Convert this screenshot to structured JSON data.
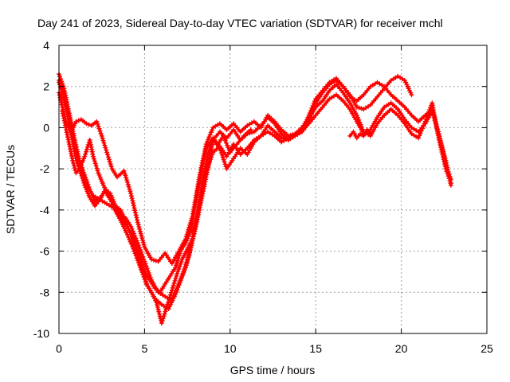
{
  "chart_data": {
    "type": "scatter",
    "title": "Day 241 of 2023, Sidereal Day-to-day VTEC variation (SDTVAR) for receiver mchl",
    "xlabel": "GPS time / hours",
    "ylabel": "SDTVAR / TECUs",
    "xlim": [
      0,
      25
    ],
    "ylim": [
      -10,
      4
    ],
    "xticks": [
      0,
      5,
      10,
      15,
      20,
      25
    ],
    "yticks": [
      -10,
      -8,
      -6,
      -4,
      -2,
      0,
      2,
      4
    ],
    "grid": true,
    "marker": "plus",
    "color": "#ff0000",
    "series": [
      {
        "name": "track-1",
        "x": [
          0.0,
          0.2,
          0.4,
          0.6,
          0.8,
          1.0,
          1.3,
          1.6,
          2.0,
          2.4,
          2.8,
          3.2,
          3.6,
          4.0,
          4.4,
          4.8,
          5.2,
          5.6,
          6.0,
          6.4,
          6.8,
          7.2,
          7.6,
          8.0,
          8.4,
          8.8,
          9.0,
          9.4,
          9.8,
          10.2,
          10.6,
          11.0,
          11.4,
          11.8,
          12.2,
          12.6,
          13.0,
          13.4,
          13.8,
          14.2,
          14.6,
          15.0,
          15.4,
          15.8,
          16.2,
          16.6,
          17.0,
          17.4,
          17.8,
          18.2,
          18.6,
          19.0,
          19.4,
          19.8,
          20.2,
          20.6
        ],
        "y": [
          2.3,
          1.8,
          1.0,
          0.2,
          -0.6,
          -1.5,
          -2.2,
          -2.8,
          -3.3,
          -3.5,
          -3.7,
          -3.9,
          -4.5,
          -5.2,
          -6.0,
          -6.9,
          -7.7,
          -8.3,
          -8.6,
          -8.8,
          -8.1,
          -7.2,
          -6.2,
          -4.8,
          -3.2,
          -1.6,
          -0.6,
          -0.2,
          -0.5,
          -0.1,
          -0.6,
          -0.3,
          -0.2,
          0.1,
          0.5,
          0.2,
          -0.3,
          -0.6,
          -0.4,
          -0.2,
          0.3,
          1.2,
          1.7,
          2.1,
          2.3,
          2.0,
          1.6,
          1.0,
          0.9,
          1.1,
          1.5,
          1.9,
          2.3,
          2.5,
          2.3,
          1.6
        ]
      },
      {
        "name": "track-2",
        "x": [
          0.0,
          0.2,
          0.4,
          0.7,
          1.0,
          1.3,
          1.6,
          1.9,
          2.2,
          2.5,
          2.8,
          3.1,
          3.4,
          3.8,
          4.2,
          4.6,
          5.0,
          5.4,
          5.8,
          6.2,
          6.6,
          7.0,
          7.4,
          7.8,
          8.2,
          8.6,
          9.0,
          9.4,
          9.8,
          10.2,
          10.6,
          11.0,
          11.4,
          11.8,
          12.2,
          12.6,
          13.0,
          13.4,
          13.8,
          14.2,
          14.6,
          15.0,
          15.4,
          15.8,
          16.2,
          16.6,
          17.0,
          17.4,
          17.8,
          18.2,
          18.6,
          19.0,
          19.4,
          19.8,
          20.2,
          20.6,
          21.0,
          21.4,
          21.8,
          22.2,
          22.6,
          22.9
        ],
        "y": [
          1.7,
          1.0,
          0.3,
          -0.2,
          0.3,
          0.4,
          0.2,
          0.1,
          0.3,
          -0.4,
          -1.2,
          -2.0,
          -2.4,
          -2.1,
          -3.2,
          -4.6,
          -5.8,
          -6.4,
          -6.5,
          -6.1,
          -6.6,
          -6.0,
          -5.4,
          -4.3,
          -2.4,
          -0.8,
          0.0,
          0.2,
          -0.1,
          0.2,
          -0.2,
          0.1,
          0.3,
          0.0,
          0.6,
          0.3,
          -0.1,
          -0.4,
          -0.3,
          -0.1,
          0.6,
          1.4,
          1.8,
          2.2,
          2.4,
          2.0,
          1.5,
          1.3,
          1.6,
          2.0,
          2.2,
          2.0,
          1.6,
          1.3,
          1.0,
          0.6,
          0.3,
          0.6,
          0.9,
          -0.4,
          -1.6,
          -2.8
        ]
      },
      {
        "name": "track-3",
        "x": [
          0.0,
          0.3,
          0.6,
          0.9,
          1.2,
          1.5,
          1.8,
          2.1,
          2.4,
          2.7,
          3.0,
          3.3,
          3.6,
          3.9,
          4.2,
          4.6,
          5.0,
          5.4,
          5.8,
          6.2,
          6.6,
          7.0,
          7.4,
          7.8,
          8.2,
          8.6,
          9.0,
          9.4,
          9.8,
          10.2,
          10.6,
          11.0,
          11.4,
          11.8,
          12.2,
          12.6,
          13.0,
          13.4,
          13.8,
          14.2,
          14.6,
          15.0,
          15.4,
          15.8,
          16.2,
          16.6,
          17.0,
          17.4,
          17.8,
          18.2,
          18.6,
          19.0,
          19.4,
          19.8,
          20.2,
          20.6,
          21.0,
          21.4,
          21.8,
          22.2,
          22.6,
          22.9
        ],
        "y": [
          2.6,
          1.9,
          0.7,
          -0.5,
          -1.6,
          -2.3,
          -3.0,
          -3.6,
          -3.4,
          -3.1,
          -3.5,
          -3.9,
          -4.2,
          -4.4,
          -4.8,
          -5.6,
          -6.5,
          -7.4,
          -8.0,
          -8.2,
          -8.4,
          -7.6,
          -6.8,
          -5.5,
          -3.8,
          -2.1,
          -1.2,
          -0.9,
          -1.4,
          -0.8,
          -1.3,
          -1.0,
          -0.6,
          -0.4,
          -0.2,
          -0.4,
          -0.7,
          -0.5,
          -0.3,
          -0.2,
          0.2,
          0.6,
          1.0,
          1.4,
          1.6,
          1.3,
          0.9,
          0.3,
          -0.3,
          -0.1,
          0.5,
          1.0,
          1.2,
          0.9,
          0.4,
          0.0,
          -0.2,
          0.2,
          0.8,
          -0.3,
          -1.8,
          -2.5
        ]
      },
      {
        "name": "track-4",
        "x": [
          0.0,
          0.3,
          0.6,
          0.9,
          1.2,
          1.5,
          1.8,
          2.1,
          2.4,
          2.7,
          3.0,
          3.3,
          3.6,
          3.9,
          4.2,
          4.5,
          4.8,
          5.1,
          5.4,
          5.7,
          6.0,
          6.3,
          6.6,
          6.9,
          7.2,
          7.5,
          7.8,
          8.1,
          8.4,
          8.7,
          9.0,
          9.4,
          9.8,
          10.2,
          10.6,
          11.0,
          11.4,
          11.8,
          12.2,
          12.6,
          13.0,
          13.4,
          13.8,
          14.2,
          14.6,
          15.0,
          15.4,
          15.8,
          16.2,
          16.6,
          17.0,
          17.4,
          17.8,
          18.2,
          18.6,
          19.0,
          19.4,
          19.8,
          20.2,
          20.6,
          21.0,
          21.4,
          21.8,
          22.2,
          22.6,
          22.9
        ],
        "y": [
          2.2,
          1.4,
          0.5,
          -0.9,
          -2.0,
          -2.8,
          -3.4,
          -3.8,
          -3.5,
          -3.0,
          -3.2,
          -3.8,
          -4.0,
          -4.6,
          -5.2,
          -6.0,
          -6.8,
          -7.6,
          -8.0,
          -8.5,
          -9.5,
          -8.7,
          -7.9,
          -7.1,
          -6.4,
          -5.9,
          -5.4,
          -4.2,
          -2.6,
          -1.3,
          -0.6,
          -1.0,
          -2.0,
          -1.5,
          -1.0,
          -1.3,
          -0.7,
          -0.4,
          0.1,
          -0.2,
          -0.5,
          -0.6,
          -0.3,
          0.0,
          0.5,
          1.0,
          1.3,
          1.8,
          2.1,
          1.7,
          1.2,
          0.6,
          -0.2,
          -0.4,
          0.2,
          0.6,
          0.9,
          0.6,
          0.2,
          -0.3,
          -0.5,
          0.3,
          1.2,
          -0.6,
          -2.0,
          -2.7
        ]
      },
      {
        "name": "track-5",
        "x": [
          0.2,
          0.4,
          0.6,
          0.8,
          1.0,
          1.2,
          1.5,
          1.8,
          2.0,
          2.3,
          2.6,
          2.9,
          3.2,
          3.5,
          3.8,
          4.1,
          4.4,
          4.7,
          5.0,
          5.3,
          5.6,
          5.9,
          6.2,
          6.5,
          6.8,
          7.1,
          7.4,
          7.7,
          8.0,
          8.3,
          8.6,
          9.0,
          9.3,
          9.6,
          10.0,
          10.4,
          10.8,
          11.2
        ],
        "y": [
          0.8,
          0.0,
          -0.8,
          -1.6,
          -2.2,
          -2.0,
          -1.4,
          -0.6,
          -1.4,
          -2.2,
          -2.8,
          -3.3,
          -3.8,
          -4.2,
          -4.6,
          -5.0,
          -5.5,
          -6.2,
          -7.0,
          -7.4,
          -7.8,
          -8.0,
          -7.6,
          -7.2,
          -6.8,
          -6.0,
          -5.6,
          -5.0,
          -3.6,
          -2.2,
          -1.0,
          -0.5,
          -0.8,
          -0.4,
          -1.2,
          -0.8,
          -0.4,
          -0.1
        ]
      },
      {
        "name": "track-6",
        "x": [
          17.0,
          17.2,
          17.4,
          17.6,
          17.8,
          18.0,
          18.2
        ],
        "y": [
          -0.4,
          -0.2,
          -0.5,
          -0.3,
          -0.4,
          -0.1,
          -0.3
        ]
      }
    ]
  }
}
